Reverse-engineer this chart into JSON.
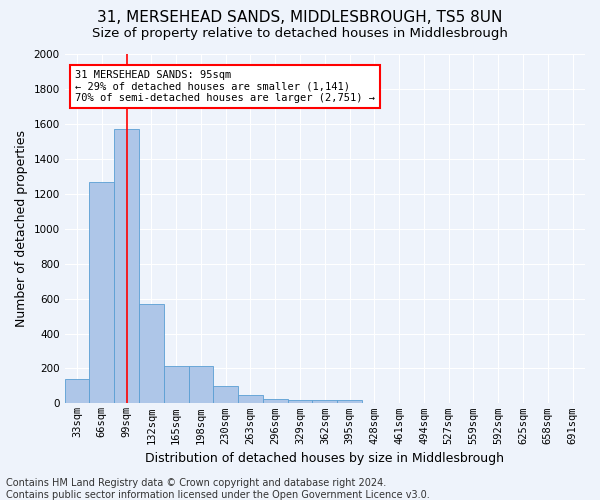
{
  "title": "31, MERSEHEAD SANDS, MIDDLESBROUGH, TS5 8UN",
  "subtitle": "Size of property relative to detached houses in Middlesbrough",
  "xlabel": "Distribution of detached houses by size in Middlesbrough",
  "ylabel": "Number of detached properties",
  "footer_line1": "Contains HM Land Registry data © Crown copyright and database right 2024.",
  "footer_line2": "Contains public sector information licensed under the Open Government Licence v3.0.",
  "categories": [
    "33sqm",
    "66sqm",
    "99sqm",
    "132sqm",
    "165sqm",
    "198sqm",
    "230sqm",
    "263sqm",
    "296sqm",
    "329sqm",
    "362sqm",
    "395sqm",
    "428sqm",
    "461sqm",
    "494sqm",
    "527sqm",
    "559sqm",
    "592sqm",
    "625sqm",
    "658sqm",
    "691sqm"
  ],
  "values": [
    140,
    1270,
    1570,
    570,
    215,
    215,
    100,
    50,
    25,
    20,
    20,
    20,
    0,
    0,
    0,
    0,
    0,
    0,
    0,
    0,
    0
  ],
  "bar_color": "#aec6e8",
  "bar_edge_color": "#5a9fd4",
  "bg_color": "#eef3fb",
  "grid_color": "#ffffff",
  "vline_x_index": 2,
  "vline_color": "red",
  "annotation_text": "31 MERSEHEAD SANDS: 95sqm\n← 29% of detached houses are smaller (1,141)\n70% of semi-detached houses are larger (2,751) →",
  "annotation_box_color": "white",
  "annotation_box_edge_color": "red",
  "ylim": [
    0,
    2000
  ],
  "yticks": [
    0,
    200,
    400,
    600,
    800,
    1000,
    1200,
    1400,
    1600,
    1800,
    2000
  ],
  "title_fontsize": 11,
  "subtitle_fontsize": 9.5,
  "ylabel_fontsize": 9,
  "xlabel_fontsize": 9,
  "tick_fontsize": 7.5,
  "annotation_fontsize": 7.5,
  "footer_fontsize": 7
}
